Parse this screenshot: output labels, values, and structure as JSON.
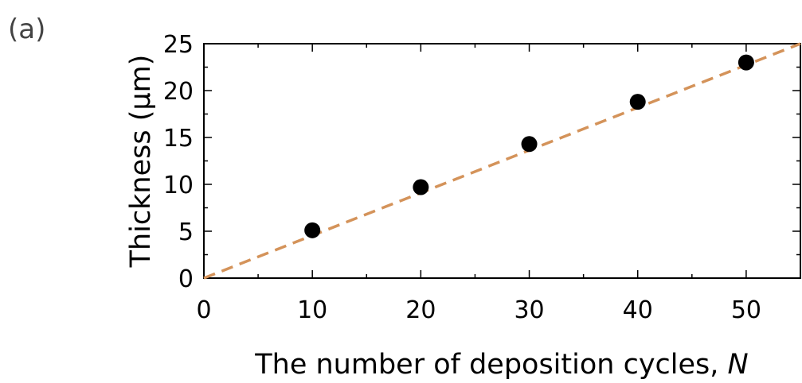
{
  "panel_label": "(a)",
  "chart_data": {
    "type": "scatter",
    "title": "",
    "xlabel_text": "The number of deposition cycles, ",
    "xlabel_var": "N",
    "ylabel": "Thickness (μm)",
    "xlim": [
      0,
      55
    ],
    "ylim": [
      0,
      25
    ],
    "x_ticks": [
      0,
      10,
      20,
      30,
      40,
      50
    ],
    "y_ticks": [
      0,
      5,
      10,
      15,
      20,
      25
    ],
    "grid": false,
    "series": [
      {
        "type": "scatter",
        "x": [
          10,
          20,
          30,
          40,
          50
        ],
        "y": [
          5.1,
          9.7,
          14.3,
          18.8,
          23.0
        ],
        "color": "#000000"
      },
      {
        "type": "line",
        "style": "dashed",
        "x": [
          0,
          55
        ],
        "y": [
          0,
          25
        ],
        "color": "#d4935a"
      }
    ]
  }
}
